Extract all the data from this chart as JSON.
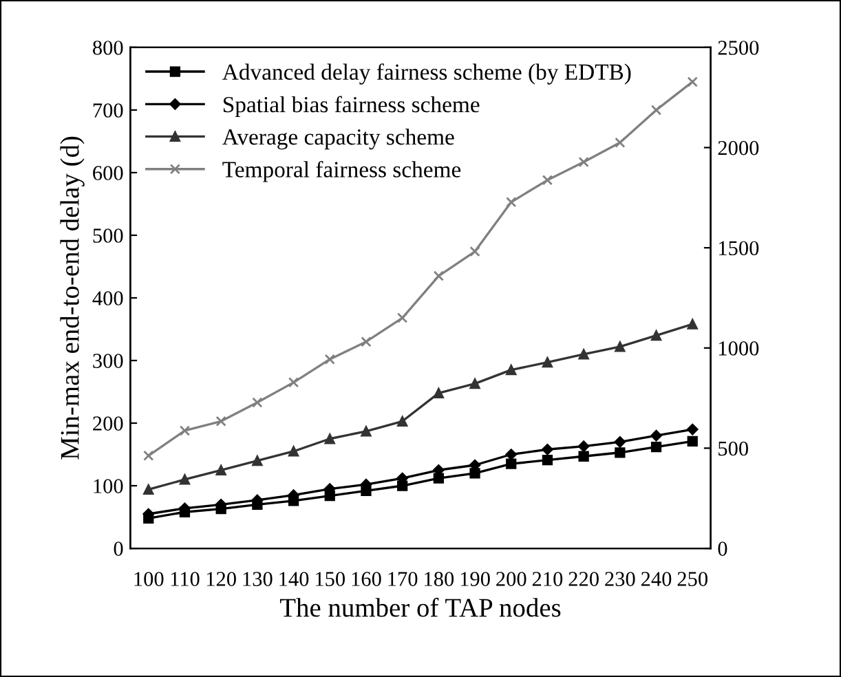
{
  "chart_data": {
    "type": "line",
    "xlabel": "The number of TAP nodes",
    "ylabel": "Min-max end-to-end delay (d)",
    "categories": [
      "100",
      "110",
      "120",
      "130",
      "140",
      "150",
      "160",
      "170",
      "180",
      "190",
      "200",
      "210",
      "220",
      "230",
      "240",
      "250"
    ],
    "ylim": [
      0,
      800
    ],
    "yticks": [
      0,
      100,
      200,
      300,
      400,
      500,
      600,
      700,
      800
    ],
    "y2lim": [
      0,
      2500
    ],
    "y2ticks": [
      0,
      500,
      1000,
      1500,
      2000,
      2500
    ],
    "legend": "top left",
    "grid": false,
    "series": [
      {
        "name": "Advanced delay fairness scheme (by EDTB)",
        "color": "#000000",
        "marker": "square",
        "values": [
          48,
          58,
          63,
          70,
          76,
          84,
          92,
          100,
          112,
          120,
          135,
          141,
          147,
          153,
          162,
          171
        ]
      },
      {
        "name": "Spatial bias fairness scheme",
        "color": "#000000",
        "marker": "diamond",
        "values": [
          55,
          64,
          70,
          77,
          85,
          95,
          102,
          112,
          125,
          133,
          150,
          158,
          163,
          170,
          180,
          190
        ]
      },
      {
        "name": "Average capacity scheme",
        "color": "#333333",
        "marker": "triangle",
        "values": [
          94,
          110,
          125,
          140,
          155,
          175,
          187,
          203,
          248,
          263,
          285,
          297,
          310,
          322,
          340,
          358
        ]
      },
      {
        "name": "Temporal fairness scheme",
        "color": "#808080",
        "marker": "cross",
        "values": [
          148,
          188,
          203,
          233,
          265,
          302,
          330,
          368,
          435,
          474,
          553,
          588,
          617,
          648,
          700,
          745
        ]
      }
    ]
  }
}
